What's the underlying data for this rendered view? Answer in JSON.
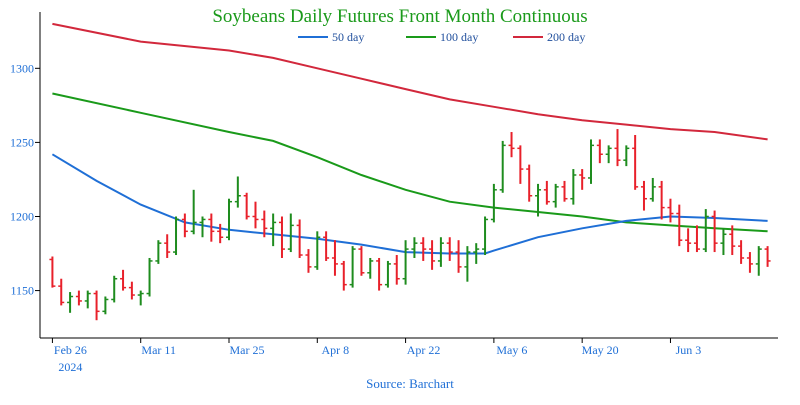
{
  "chart_data": {
    "type": "ohlc-with-moving-averages",
    "title": "Soybeans Daily Futures Front Month Continuous",
    "source": "Source: Barchart",
    "ylim": [
      1118,
      1338
    ],
    "y_ticks": [
      1150,
      1200,
      1250,
      1300
    ],
    "x_ticks": [
      {
        "label": "Feb 26",
        "sub": "2024",
        "day": 0
      },
      {
        "label": "Mar 11",
        "sub": "",
        "day": 10
      },
      {
        "label": "Mar 25",
        "sub": "",
        "day": 20
      },
      {
        "label": "Apr 8",
        "sub": "",
        "day": 30
      },
      {
        "label": "Apr 22",
        "sub": "",
        "day": 40
      },
      {
        "label": "May 6",
        "sub": "",
        "day": 50
      },
      {
        "label": "May 20",
        "sub": "",
        "day": 60
      },
      {
        "label": "Jun 3",
        "sub": "",
        "day": 70
      }
    ],
    "x_range": [
      -0.5,
      81.5
    ],
    "colors": {
      "up": "#1e8c1e",
      "down": "#e8202a",
      "axis": "#000000",
      "title": "#1a9a1a",
      "ma50": "#1f6fd6",
      "ma100": "#1a9a1a",
      "ma200": "#d2283c"
    },
    "legend": [
      {
        "name": "50 day",
        "color": "#1f6fd6"
      },
      {
        "name": "100 day",
        "color": "#1a9a1a"
      },
      {
        "name": "200 day",
        "color": "#d2283c"
      }
    ],
    "ohlc": [
      [
        1171,
        1173,
        1152,
        1153
      ],
      [
        1153,
        1158,
        1140,
        1142
      ],
      [
        1142,
        1149,
        1135,
        1146
      ],
      [
        1146,
        1150,
        1140,
        1143
      ],
      [
        1143,
        1150,
        1138,
        1148
      ],
      [
        1148,
        1150,
        1130,
        1136
      ],
      [
        1136,
        1146,
        1134,
        1144
      ],
      [
        1144,
        1160,
        1142,
        1158
      ],
      [
        1158,
        1164,
        1150,
        1152
      ],
      [
        1152,
        1156,
        1144,
        1147
      ],
      [
        1147,
        1150,
        1140,
        1148
      ],
      [
        1148,
        1172,
        1146,
        1170
      ],
      [
        1170,
        1184,
        1168,
        1182
      ],
      [
        1182,
        1188,
        1172,
        1176
      ],
      [
        1176,
        1200,
        1174,
        1198
      ],
      [
        1198,
        1202,
        1186,
        1190
      ],
      [
        1190,
        1218,
        1188,
        1196
      ],
      [
        1196,
        1200,
        1186,
        1198
      ],
      [
        1198,
        1202,
        1183,
        1190
      ],
      [
        1190,
        1195,
        1182,
        1186
      ],
      [
        1186,
        1212,
        1184,
        1210
      ],
      [
        1210,
        1227,
        1206,
        1214
      ],
      [
        1214,
        1216,
        1198,
        1200
      ],
      [
        1200,
        1210,
        1192,
        1198
      ],
      [
        1198,
        1204,
        1186,
        1192
      ],
      [
        1192,
        1202,
        1180,
        1196
      ],
      [
        1196,
        1200,
        1172,
        1178
      ],
      [
        1178,
        1202,
        1176,
        1194
      ],
      [
        1194,
        1198,
        1172,
        1174
      ],
      [
        1174,
        1178,
        1162,
        1166
      ],
      [
        1166,
        1190,
        1164,
        1186
      ],
      [
        1186,
        1190,
        1170,
        1172
      ],
      [
        1172,
        1184,
        1160,
        1168
      ],
      [
        1168,
        1170,
        1150,
        1154
      ],
      [
        1154,
        1180,
        1152,
        1178
      ],
      [
        1178,
        1180,
        1160,
        1162
      ],
      [
        1162,
        1172,
        1158,
        1170
      ],
      [
        1170,
        1172,
        1150,
        1154
      ],
      [
        1154,
        1170,
        1152,
        1168
      ],
      [
        1168,
        1174,
        1154,
        1158
      ],
      [
        1158,
        1184,
        1154,
        1178
      ],
      [
        1178,
        1186,
        1172,
        1182
      ],
      [
        1182,
        1186,
        1170,
        1178
      ],
      [
        1178,
        1184,
        1164,
        1170
      ],
      [
        1170,
        1186,
        1166,
        1182
      ],
      [
        1182,
        1186,
        1170,
        1176
      ],
      [
        1176,
        1184,
        1162,
        1166
      ],
      [
        1166,
        1180,
        1156,
        1176
      ],
      [
        1176,
        1182,
        1168,
        1178
      ],
      [
        1178,
        1200,
        1174,
        1198
      ],
      [
        1198,
        1222,
        1196,
        1218
      ],
      [
        1218,
        1251,
        1216,
        1248
      ],
      [
        1248,
        1257,
        1240,
        1246
      ],
      [
        1246,
        1248,
        1222,
        1232
      ],
      [
        1232,
        1235,
        1210,
        1214
      ],
      [
        1214,
        1222,
        1200,
        1218
      ],
      [
        1218,
        1224,
        1208,
        1210
      ],
      [
        1210,
        1222,
        1206,
        1220
      ],
      [
        1220,
        1224,
        1210,
        1212
      ],
      [
        1212,
        1232,
        1208,
        1228
      ],
      [
        1228,
        1232,
        1218,
        1226
      ],
      [
        1226,
        1252,
        1222,
        1248
      ],
      [
        1248,
        1252,
        1236,
        1242
      ],
      [
        1242,
        1248,
        1236,
        1246
      ],
      [
        1246,
        1259,
        1234,
        1238
      ],
      [
        1238,
        1248,
        1234,
        1246
      ],
      [
        1246,
        1255,
        1218,
        1220
      ],
      [
        1220,
        1224,
        1204,
        1212
      ],
      [
        1212,
        1226,
        1210,
        1220
      ],
      [
        1220,
        1224,
        1198,
        1206
      ],
      [
        1206,
        1212,
        1196,
        1202
      ],
      [
        1202,
        1208,
        1180,
        1184
      ],
      [
        1184,
        1192,
        1176,
        1182
      ],
      [
        1182,
        1194,
        1176,
        1178
      ],
      [
        1178,
        1205,
        1176,
        1200
      ],
      [
        1200,
        1204,
        1176,
        1182
      ],
      [
        1182,
        1192,
        1174,
        1188
      ],
      [
        1188,
        1194,
        1174,
        1180
      ],
      [
        1180,
        1184,
        1168,
        1172
      ],
      [
        1172,
        1176,
        1162,
        1168
      ],
      [
        1168,
        1180,
        1160,
        1178
      ],
      [
        1178,
        1180,
        1166,
        1170
      ]
    ],
    "ma50": [
      [
        0,
        1242
      ],
      [
        5,
        1224
      ],
      [
        10,
        1208
      ],
      [
        15,
        1196
      ],
      [
        20,
        1191
      ],
      [
        25,
        1188
      ],
      [
        30,
        1185
      ],
      [
        35,
        1181
      ],
      [
        40,
        1176
      ],
      [
        45,
        1175
      ],
      [
        49,
        1175
      ],
      [
        50,
        1177
      ],
      [
        55,
        1186
      ],
      [
        60,
        1192
      ],
      [
        65,
        1197
      ],
      [
        70,
        1200
      ],
      [
        75,
        1199
      ],
      [
        81,
        1197
      ]
    ],
    "ma100": [
      [
        0,
        1283
      ],
      [
        10,
        1270
      ],
      [
        20,
        1257
      ],
      [
        25,
        1251
      ],
      [
        30,
        1240
      ],
      [
        35,
        1228
      ],
      [
        40,
        1218
      ],
      [
        45,
        1210
      ],
      [
        50,
        1206
      ],
      [
        55,
        1203
      ],
      [
        60,
        1200
      ],
      [
        65,
        1196
      ],
      [
        70,
        1194
      ],
      [
        75,
        1192
      ],
      [
        81,
        1190
      ]
    ],
    "ma200": [
      [
        0,
        1330
      ],
      [
        10,
        1318
      ],
      [
        20,
        1312
      ],
      [
        25,
        1307
      ],
      [
        30,
        1300
      ],
      [
        35,
        1293
      ],
      [
        40,
        1286
      ],
      [
        45,
        1279
      ],
      [
        50,
        1274
      ],
      [
        55,
        1269
      ],
      [
        60,
        1265
      ],
      [
        65,
        1262
      ],
      [
        70,
        1259
      ],
      [
        75,
        1257
      ],
      [
        81,
        1252
      ]
    ]
  }
}
